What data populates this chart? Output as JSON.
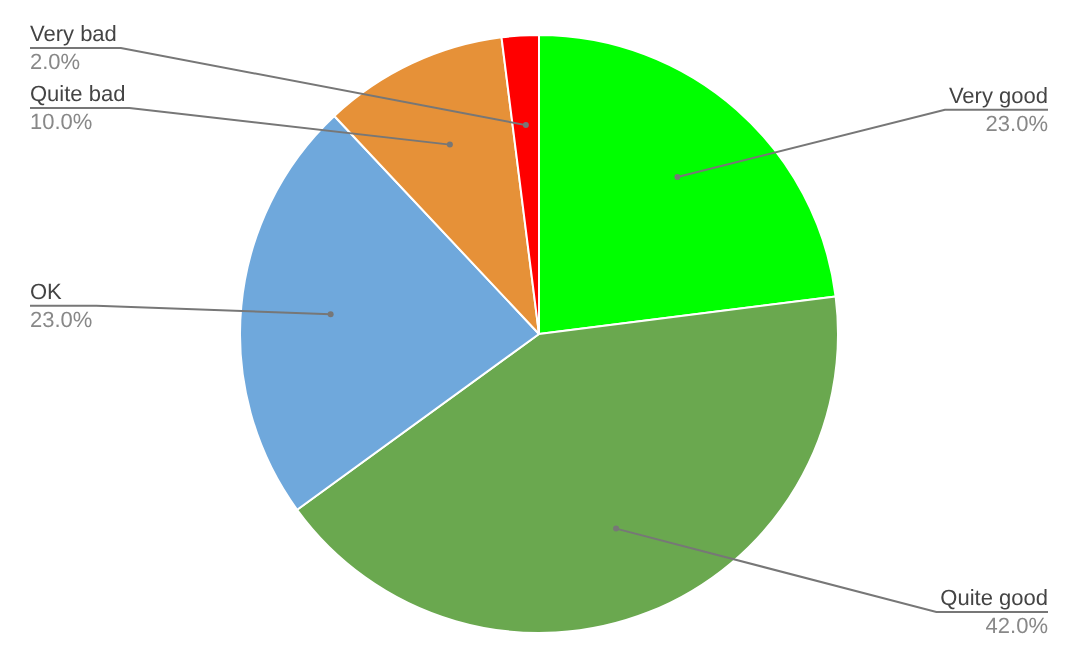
{
  "chart_data": {
    "type": "pie",
    "categories": [
      "Very good",
      "Quite good",
      "OK",
      "Quite bad",
      "Very bad"
    ],
    "values": [
      23,
      42,
      23,
      10,
      2
    ],
    "colors": [
      "#00ff00",
      "#6aa84f",
      "#6fa8dc",
      "#e69138",
      "#ff0000"
    ],
    "value_labels": [
      "23.0%",
      "42.0%",
      "23.0%",
      "10.0%",
      "2.0%"
    ],
    "legend": false
  }
}
